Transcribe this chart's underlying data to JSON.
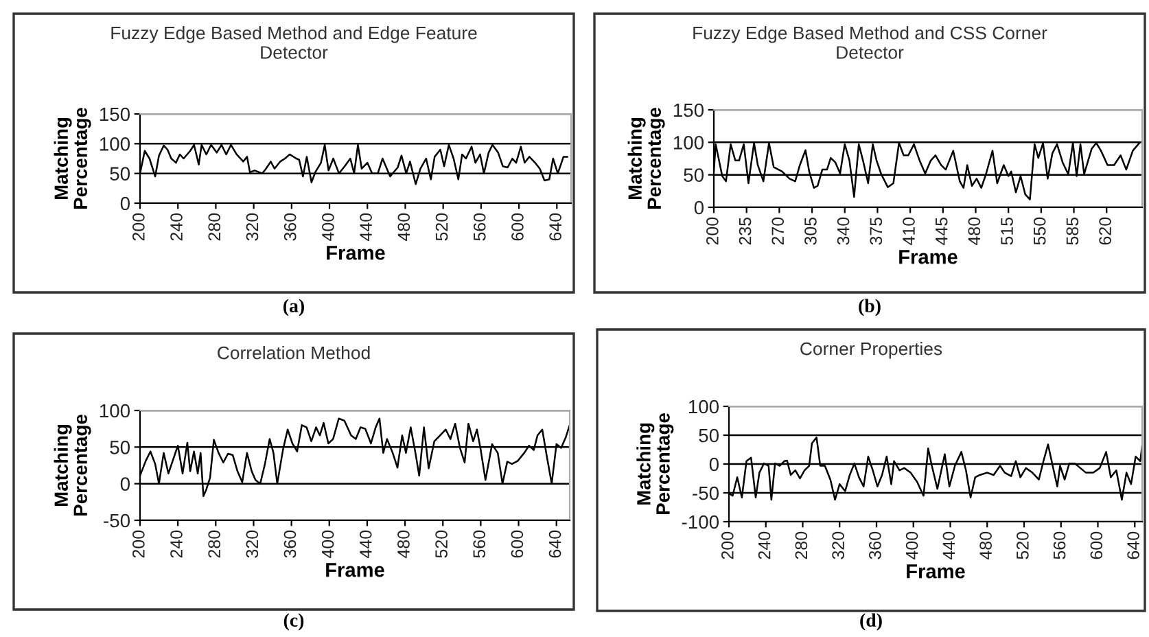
{
  "chart_data": [
    {
      "type": "line",
      "title": "Fuzzy Edge Based Method and Edge Feature\nDetector",
      "xlabel": "Frame",
      "ylabel": "Matching\nPercentage",
      "annotations": [
        "(a)"
      ],
      "grid": "y",
      "xlim": [
        200,
        655
      ],
      "ylim": [
        0,
        150
      ],
      "xticks": [
        200,
        240,
        280,
        320,
        360,
        400,
        440,
        480,
        520,
        560,
        600,
        640
      ],
      "yticks": [
        0,
        50,
        100,
        150
      ],
      "x": [
        200,
        205,
        210,
        216,
        220,
        225,
        229,
        233,
        238,
        242,
        246,
        253,
        257,
        262,
        265,
        270,
        275,
        281,
        286,
        291,
        296,
        302,
        309,
        313,
        316,
        321,
        329,
        333,
        338,
        342,
        348,
        353,
        358,
        365,
        368,
        372,
        376,
        381,
        385,
        391,
        395,
        399,
        404,
        410,
        416,
        422,
        426,
        430,
        434,
        440,
        445,
        451,
        456,
        464,
        472,
        476,
        481,
        485,
        491,
        496,
        502,
        507,
        511,
        517,
        521,
        526,
        531,
        536,
        540,
        544,
        550,
        554,
        559,
        563,
        568,
        572,
        578,
        583,
        588,
        593,
        597,
        602,
        606,
        611,
        617,
        622,
        627,
        632,
        636,
        641,
        647,
        651
      ],
      "series": [
        {
          "color": "#000000",
          "values": [
            50,
            88,
            75,
            45,
            80,
            97,
            90,
            75,
            68,
            82,
            75,
            88,
            98,
            65,
            98,
            82,
            98,
            85,
            98,
            82,
            98,
            82,
            70,
            78,
            52,
            55,
            50,
            58,
            70,
            58,
            70,
            75,
            82,
            75,
            73,
            45,
            78,
            35,
            52,
            68,
            98,
            55,
            75,
            50,
            62,
            75,
            50,
            98,
            58,
            68,
            50,
            50,
            75,
            45,
            60,
            80,
            50,
            70,
            32,
            58,
            75,
            40,
            78,
            90,
            62,
            98,
            75,
            40,
            82,
            75,
            95,
            68,
            82,
            50,
            85,
            98,
            85,
            62,
            60,
            75,
            68,
            95,
            68,
            78,
            68,
            58,
            38,
            40,
            75,
            50,
            78,
            78
          ]
        }
      ]
    },
    {
      "type": "line",
      "title": "Fuzzy Edge Based Method and CSS Corner\nDetector",
      "xlabel": "Frame",
      "ylabel": "Matching\nPercentage",
      "annotations": [
        "(b)"
      ],
      "grid": "y",
      "xlim": [
        200,
        658
      ],
      "ylim": [
        0,
        150
      ],
      "xticks": [
        200,
        235,
        270,
        305,
        340,
        375,
        410,
        445,
        480,
        515,
        550,
        585,
        620
      ],
      "yticks": [
        0,
        50,
        100,
        150
      ],
      "x": [
        200,
        202,
        209,
        213,
        218,
        223,
        227,
        232,
        237,
        243,
        247,
        253,
        259,
        264,
        273,
        281,
        287,
        292,
        298,
        302,
        307,
        311,
        316,
        321,
        325,
        330,
        335,
        340,
        345,
        350,
        355,
        360,
        365,
        370,
        374,
        379,
        386,
        392,
        398,
        403,
        408,
        414,
        420,
        426,
        432,
        437,
        443,
        448,
        456,
        463,
        467,
        471,
        476,
        481,
        486,
        491,
        498,
        503,
        510,
        515,
        518,
        523,
        528,
        533,
        538,
        543,
        547,
        552,
        557,
        562,
        567,
        573,
        579,
        584,
        588,
        592,
        596,
        604,
        609,
        614,
        621,
        628,
        635,
        641,
        648,
        655
      ],
      "series": [
        {
          "color": "#000000",
          "values": [
            55,
            97,
            48,
            40,
            97,
            72,
            72,
            97,
            37,
            99,
            65,
            40,
            99,
            62,
            55,
            44,
            40,
            65,
            88,
            55,
            30,
            33,
            58,
            58,
            76,
            69,
            52,
            97,
            72,
            16,
            97,
            69,
            37,
            97,
            72,
            51,
            31,
            37,
            99,
            80,
            80,
            97,
            72,
            52,
            72,
            80,
            65,
            58,
            87,
            40,
            30,
            65,
            33,
            44,
            30,
            51,
            87,
            37,
            65,
            48,
            55,
            23,
            48,
            20,
            12,
            97,
            76,
            99,
            44,
            83,
            97,
            69,
            51,
            99,
            48,
            97,
            51,
            90,
            99,
            87,
            65,
            65,
            80,
            58,
            87,
            99
          ]
        }
      ]
    },
    {
      "type": "line",
      "title": "Correlation Method",
      "xlabel": "Frame",
      "ylabel": "Matching\nPercentage",
      "annotations": [
        "(c)"
      ],
      "grid": "y",
      "xlim": [
        200,
        654
      ],
      "ylim": [
        -50,
        100
      ],
      "xticks": [
        200,
        240,
        280,
        320,
        360,
        400,
        440,
        480,
        520,
        560,
        600,
        640
      ],
      "yticks": [
        -50,
        0,
        50,
        100
      ],
      "x": [
        200,
        206,
        211,
        216,
        220,
        225,
        230,
        235,
        240,
        245,
        250,
        253,
        257,
        261,
        264,
        267,
        270,
        274,
        278,
        283,
        288,
        293,
        298,
        303,
        308,
        313,
        318,
        322,
        327,
        332,
        337,
        341,
        345,
        351,
        356,
        361,
        366,
        371,
        376,
        381,
        386,
        390,
        394,
        399,
        404,
        410,
        416,
        423,
        428,
        433,
        438,
        444,
        449,
        453,
        457,
        461,
        467,
        472,
        477,
        481,
        486,
        491,
        495,
        500,
        505,
        511,
        517,
        523,
        528,
        533,
        538,
        543,
        547,
        552,
        556,
        560,
        565,
        572,
        578,
        583,
        588,
        593,
        599,
        606,
        611,
        616,
        620,
        625,
        630,
        635,
        640,
        645,
        650,
        654
      ],
      "series": [
        {
          "color": "#000000",
          "values": [
            11,
            31,
            44,
            27,
            0,
            42,
            14,
            33,
            52,
            14,
            56,
            17,
            44,
            14,
            42,
            -17,
            -8,
            8,
            60,
            42,
            29,
            41,
            39,
            17,
            2,
            42,
            17,
            5,
            0,
            27,
            61,
            42,
            0,
            46,
            74,
            55,
            44,
            80,
            77,
            58,
            77,
            66,
            83,
            55,
            61,
            89,
            86,
            66,
            61,
            77,
            75,
            55,
            77,
            89,
            42,
            61,
            42,
            22,
            66,
            42,
            77,
            42,
            11,
            77,
            21,
            58,
            66,
            74,
            61,
            82,
            49,
            29,
            82,
            58,
            74,
            46,
            5,
            54,
            42,
            0,
            30,
            27,
            31,
            42,
            52,
            46,
            66,
            74,
            36,
            0,
            54,
            49,
            64,
            80
          ]
        }
      ]
    },
    {
      "type": "line",
      "title": "Corner Properties",
      "xlabel": "Frame",
      "ylabel": "Matching\nPercentage",
      "annotations": [
        "(d)"
      ],
      "grid": "y",
      "xlim": [
        200,
        648
      ],
      "ylim": [
        -100,
        100
      ],
      "xticks": [
        200,
        240,
        280,
        320,
        360,
        400,
        440,
        480,
        520,
        560,
        600,
        640
      ],
      "yticks": [
        -100,
        -50,
        0,
        50,
        100
      ],
      "x": [
        200,
        204,
        209,
        214,
        219,
        224,
        229,
        233,
        238,
        243,
        246,
        250,
        255,
        260,
        263,
        267,
        272,
        277,
        282,
        287,
        290,
        295,
        299,
        304,
        310,
        315,
        320,
        326,
        331,
        336,
        341,
        346,
        351,
        356,
        361,
        366,
        371,
        376,
        379,
        385,
        390,
        397,
        404,
        411,
        416,
        420,
        426,
        434,
        439,
        445,
        452,
        457,
        462,
        467,
        472,
        480,
        487,
        494,
        499,
        506,
        511,
        516,
        522,
        529,
        536,
        541,
        546,
        551,
        556,
        559,
        564,
        569,
        575,
        581,
        587,
        595,
        602,
        609,
        614,
        620,
        626,
        631,
        636,
        641,
        646,
        648
      ],
      "series": [
        {
          "color": "#000000",
          "values": [
            -51,
            -55,
            -23,
            -58,
            5,
            11,
            -58,
            -15,
            1,
            -3,
            -62,
            1,
            -3,
            5,
            6,
            -19,
            -11,
            -25,
            -11,
            -3,
            36,
            46,
            -3,
            -3,
            -27,
            -62,
            -35,
            -47,
            -19,
            1,
            -23,
            -39,
            13,
            -11,
            -39,
            -19,
            13,
            -35,
            5,
            -11,
            -7,
            -15,
            -31,
            -55,
            27,
            -3,
            -43,
            17,
            -39,
            -3,
            21,
            -11,
            -58,
            -23,
            -19,
            -15,
            -19,
            -3,
            -15,
            -21,
            5,
            -23,
            -7,
            -15,
            -27,
            5,
            34,
            -3,
            -39,
            -3,
            -27,
            1,
            1,
            -7,
            -15,
            -15,
            -7,
            21,
            -23,
            -11,
            -62,
            -15,
            -35,
            13,
            5,
            32
          ]
        }
      ]
    }
  ]
}
